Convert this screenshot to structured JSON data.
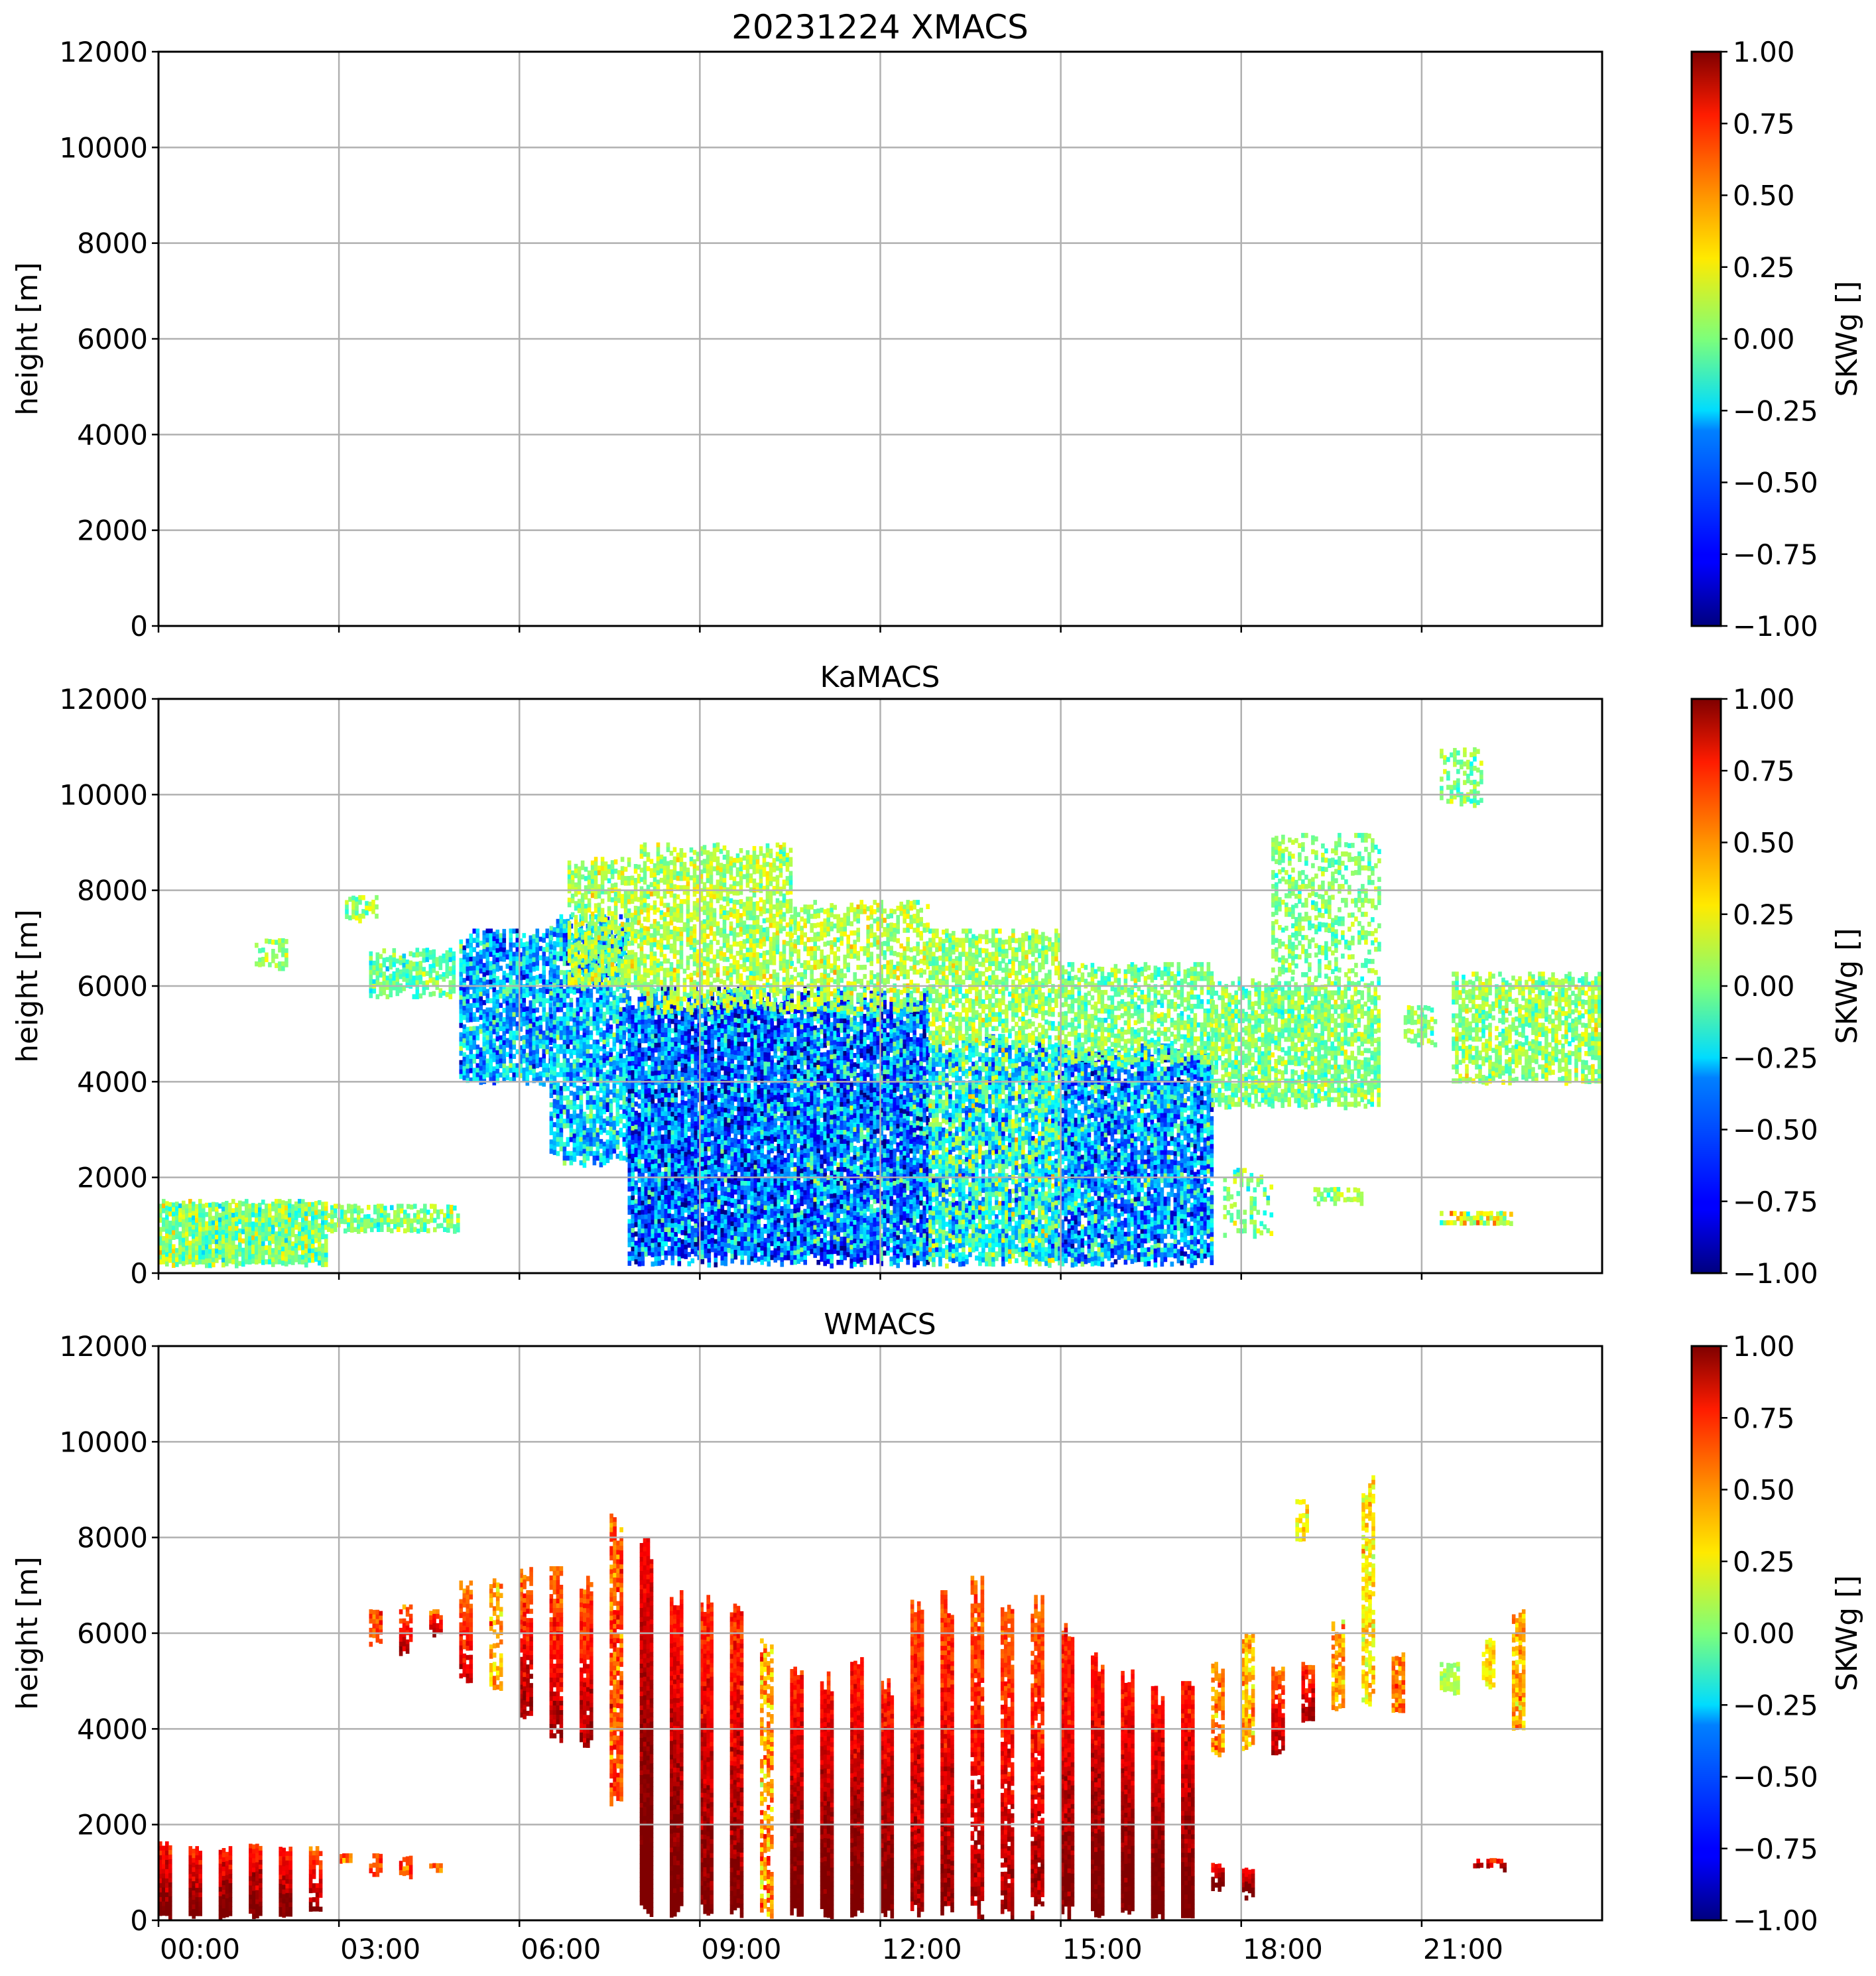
{
  "figure_title": "20231224 XMACS",
  "chart_data": [
    {
      "type": "heatmap",
      "title": "20231224 XMACS",
      "xlabel": "",
      "ylabel": "height [m]",
      "xlim_hours": [
        0,
        24
      ],
      "ylim": [
        0,
        12000
      ],
      "grid": true,
      "xticks_hours": [
        0,
        3,
        6,
        9,
        12,
        15,
        18,
        21
      ],
      "xtick_labels": [
        "00:00",
        "03:00",
        "06:00",
        "09:00",
        "12:00",
        "15:00",
        "18:00",
        "21:00"
      ],
      "show_xtick_labels": false,
      "yticks": [
        0,
        2000,
        4000,
        6000,
        8000,
        10000,
        12000
      ],
      "ytick_labels": [
        "0",
        "2000",
        "4000",
        "6000",
        "8000",
        "10000",
        "12000"
      ],
      "colorbar": {
        "label": "SKWg []",
        "range": [
          -1,
          1
        ],
        "colormap": "jet",
        "ticks": [
          1.0,
          0.75,
          0.5,
          0.25,
          0.0,
          -0.25,
          -0.5,
          -0.75,
          -1.0
        ],
        "tick_labels": [
          "1.00",
          "0.75",
          "0.50",
          "0.25",
          "0.00",
          "−0.25",
          "−0.50",
          "−0.75",
          "−1.00"
        ]
      },
      "features": []
    },
    {
      "type": "heatmap",
      "title": "KaMACS",
      "xlabel": "",
      "ylabel": "height [m]",
      "xlim_hours": [
        0,
        24
      ],
      "ylim": [
        0,
        12000
      ],
      "grid": true,
      "xticks_hours": [
        0,
        3,
        6,
        9,
        12,
        15,
        18,
        21
      ],
      "xtick_labels": [
        "00:00",
        "03:00",
        "06:00",
        "09:00",
        "12:00",
        "15:00",
        "18:00",
        "21:00"
      ],
      "show_xtick_labels": false,
      "yticks": [
        0,
        2000,
        4000,
        6000,
        8000,
        10000,
        12000
      ],
      "ytick_labels": [
        "0",
        "2000",
        "4000",
        "6000",
        "8000",
        "10000",
        "12000"
      ],
      "colorbar": {
        "label": "SKWg []",
        "range": [
          -1,
          1
        ],
        "colormap": "jet",
        "ticks": [
          1.0,
          0.75,
          0.5,
          0.25,
          0.0,
          -0.25,
          -0.5,
          -0.75,
          -1.0
        ],
        "tick_labels": [
          "1.00",
          "0.75",
          "0.50",
          "0.25",
          "0.00",
          "−0.25",
          "−0.50",
          "−0.75",
          "−1.00"
        ]
      },
      "features": [
        {
          "t0": 0.0,
          "t1": 2.8,
          "h0": 200,
          "h1": 1550,
          "mean": 0.0,
          "spread": 0.45,
          "fill": 0.95
        },
        {
          "t0": 2.8,
          "t1": 5.0,
          "h0": 900,
          "h1": 1450,
          "mean": 0.0,
          "spread": 0.35,
          "fill": 0.7
        },
        {
          "t0": 1.6,
          "t1": 2.1,
          "h0": 6400,
          "h1": 7000,
          "mean": 0.05,
          "spread": 0.3,
          "fill": 0.5
        },
        {
          "t0": 3.1,
          "t1": 3.6,
          "h0": 7400,
          "h1": 7900,
          "mean": 0.05,
          "spread": 0.3,
          "fill": 0.6
        },
        {
          "t0": 3.5,
          "t1": 4.9,
          "h0": 5800,
          "h1": 6800,
          "mean": -0.05,
          "spread": 0.35,
          "fill": 0.7
        },
        {
          "t0": 5.0,
          "t1": 6.5,
          "h0": 4000,
          "h1": 7200,
          "mean": -0.4,
          "spread": 0.6,
          "fill": 0.85
        },
        {
          "t0": 6.5,
          "t1": 7.8,
          "h0": 2300,
          "h1": 7500,
          "mean": -0.35,
          "spread": 0.6,
          "fill": 0.85
        },
        {
          "t0": 6.8,
          "t1": 8.0,
          "h0": 6000,
          "h1": 8700,
          "mean": 0.1,
          "spread": 0.35,
          "fill": 0.7
        },
        {
          "t0": 7.8,
          "t1": 10.5,
          "h0": 200,
          "h1": 6000,
          "mean": -0.55,
          "spread": 0.7,
          "fill": 0.95
        },
        {
          "t0": 8.0,
          "t1": 10.5,
          "h0": 5500,
          "h1": 9000,
          "mean": 0.1,
          "spread": 0.35,
          "fill": 0.7
        },
        {
          "t0": 10.5,
          "t1": 12.8,
          "h0": 200,
          "h1": 6000,
          "mean": -0.5,
          "spread": 0.75,
          "fill": 0.95
        },
        {
          "t0": 10.5,
          "t1": 12.8,
          "h0": 5500,
          "h1": 7800,
          "mean": 0.1,
          "spread": 0.35,
          "fill": 0.6
        },
        {
          "t0": 12.8,
          "t1": 15.0,
          "h0": 200,
          "h1": 5000,
          "mean": -0.2,
          "spread": 0.7,
          "fill": 0.9
        },
        {
          "t0": 12.8,
          "t1": 15.0,
          "h0": 4800,
          "h1": 7200,
          "mean": 0.05,
          "spread": 0.35,
          "fill": 0.7
        },
        {
          "t0": 15.0,
          "t1": 17.5,
          "h0": 200,
          "h1": 4800,
          "mean": -0.45,
          "spread": 0.7,
          "fill": 0.9
        },
        {
          "t0": 15.0,
          "t1": 17.5,
          "h0": 4400,
          "h1": 6500,
          "mean": 0.0,
          "spread": 0.35,
          "fill": 0.65
        },
        {
          "t0": 17.5,
          "t1": 20.3,
          "h0": 3500,
          "h1": 6200,
          "mean": 0.0,
          "spread": 0.35,
          "fill": 0.75
        },
        {
          "t0": 18.5,
          "t1": 20.3,
          "h0": 6200,
          "h1": 9200,
          "mean": 0.0,
          "spread": 0.3,
          "fill": 0.45
        },
        {
          "t0": 21.3,
          "t1": 22.0,
          "h0": 9800,
          "h1": 11000,
          "mean": 0.0,
          "spread": 0.3,
          "fill": 0.5
        },
        {
          "t0": 20.7,
          "t1": 21.2,
          "h0": 4800,
          "h1": 5600,
          "mean": 0.0,
          "spread": 0.3,
          "fill": 0.7
        },
        {
          "t0": 21.5,
          "t1": 24.0,
          "h0": 4000,
          "h1": 6300,
          "mean": 0.05,
          "spread": 0.35,
          "fill": 0.7
        },
        {
          "t0": 19.2,
          "t1": 20.0,
          "h0": 1500,
          "h1": 1800,
          "mean": 0.0,
          "spread": 0.35,
          "fill": 0.6
        },
        {
          "t0": 21.3,
          "t1": 22.5,
          "h0": 1050,
          "h1": 1300,
          "mean": 0.2,
          "spread": 0.5,
          "fill": 0.6
        },
        {
          "t0": 17.7,
          "t1": 18.5,
          "h0": 800,
          "h1": 2200,
          "mean": 0.0,
          "spread": 0.4,
          "fill": 0.35
        }
      ]
    },
    {
      "type": "heatmap",
      "title": "WMACS",
      "xlabel": "",
      "ylabel": "height [m]",
      "xlim_hours": [
        0,
        24
      ],
      "ylim": [
        0,
        12000
      ],
      "grid": true,
      "xticks_hours": [
        0,
        3,
        6,
        9,
        12,
        15,
        18,
        21
      ],
      "xtick_labels": [
        "00:00",
        "03:00",
        "06:00",
        "09:00",
        "12:00",
        "15:00",
        "18:00",
        "21:00"
      ],
      "show_xtick_labels": true,
      "yticks": [
        0,
        2000,
        4000,
        6000,
        8000,
        10000,
        12000
      ],
      "ytick_labels": [
        "0",
        "2000",
        "4000",
        "6000",
        "8000",
        "10000",
        "12000"
      ],
      "colorbar": {
        "label": "SKWg []",
        "range": [
          -1,
          1
        ],
        "colormap": "jet",
        "ticks": [
          1.0,
          0.75,
          0.5,
          0.25,
          0.0,
          -0.25,
          -0.5,
          -0.75,
          -1.0
        ],
        "tick_labels": [
          "1.00",
          "0.75",
          "0.50",
          "0.25",
          "0.00",
          "−0.25",
          "−0.50",
          "−0.75",
          "−1.00"
        ]
      },
      "features": [
        {
          "t0": 0.0,
          "t1": 0.22,
          "h0": 100,
          "h1": 1650,
          "mean": 0.85,
          "spread": 0.3,
          "fill": 1.0
        },
        {
          "t0": 0.5,
          "t1": 0.72,
          "h0": 100,
          "h1": 1550,
          "mean": 0.85,
          "spread": 0.3,
          "fill": 1.0
        },
        {
          "t0": 1.0,
          "t1": 1.22,
          "h0": 100,
          "h1": 1550,
          "mean": 0.85,
          "spread": 0.3,
          "fill": 1.0
        },
        {
          "t0": 1.5,
          "t1": 1.72,
          "h0": 100,
          "h1": 1600,
          "mean": 0.85,
          "spread": 0.3,
          "fill": 1.0
        },
        {
          "t0": 2.0,
          "t1": 2.22,
          "h0": 100,
          "h1": 1550,
          "mean": 0.85,
          "spread": 0.3,
          "fill": 1.0
        },
        {
          "t0": 2.5,
          "t1": 2.72,
          "h0": 200,
          "h1": 1550,
          "mean": 0.75,
          "spread": 0.3,
          "fill": 0.8
        },
        {
          "t0": 3.0,
          "t1": 3.2,
          "h0": 1200,
          "h1": 1400,
          "mean": 0.5,
          "spread": 0.3,
          "fill": 0.8
        },
        {
          "t0": 3.5,
          "t1": 3.7,
          "h0": 1000,
          "h1": 1400,
          "mean": 0.6,
          "spread": 0.3,
          "fill": 0.8
        },
        {
          "t0": 4.0,
          "t1": 4.2,
          "h0": 950,
          "h1": 1350,
          "mean": 0.6,
          "spread": 0.3,
          "fill": 0.8
        },
        {
          "t0": 4.5,
          "t1": 4.7,
          "h0": 1000,
          "h1": 1200,
          "mean": 0.45,
          "spread": 0.3,
          "fill": 0.7
        },
        {
          "t0": 3.5,
          "t1": 3.7,
          "h0": 5800,
          "h1": 6500,
          "mean": 0.6,
          "spread": 0.3,
          "fill": 0.8
        },
        {
          "t0": 4.0,
          "t1": 4.2,
          "h0": 5600,
          "h1": 6600,
          "mean": 0.7,
          "spread": 0.3,
          "fill": 0.85
        },
        {
          "t0": 4.5,
          "t1": 4.7,
          "h0": 6000,
          "h1": 6500,
          "mean": 0.7,
          "spread": 0.3,
          "fill": 0.8
        },
        {
          "t0": 5.0,
          "t1": 5.2,
          "h0": 5000,
          "h1": 7100,
          "mean": 0.65,
          "spread": 0.3,
          "fill": 0.85
        },
        {
          "t0": 5.5,
          "t1": 5.72,
          "h0": 4900,
          "h1": 7200,
          "mean": 0.45,
          "spread": 0.35,
          "fill": 0.7
        },
        {
          "t0": 6.0,
          "t1": 6.22,
          "h0": 4200,
          "h1": 7400,
          "mean": 0.7,
          "spread": 0.3,
          "fill": 0.9
        },
        {
          "t0": 6.5,
          "t1": 6.72,
          "h0": 3800,
          "h1": 7400,
          "mean": 0.7,
          "spread": 0.3,
          "fill": 0.9
        },
        {
          "t0": 7.0,
          "t1": 7.22,
          "h0": 3700,
          "h1": 7200,
          "mean": 0.7,
          "spread": 0.3,
          "fill": 0.9
        },
        {
          "t0": 7.5,
          "t1": 7.72,
          "h0": 2400,
          "h1": 8500,
          "mean": 0.6,
          "spread": 0.35,
          "fill": 0.9
        },
        {
          "t0": 8.0,
          "t1": 8.2,
          "h0": 100,
          "h1": 8000,
          "mean": 0.9,
          "spread": 0.2,
          "fill": 1.0
        },
        {
          "t0": 8.5,
          "t1": 8.7,
          "h0": 100,
          "h1": 6900,
          "mean": 0.85,
          "spread": 0.25,
          "fill": 1.0
        },
        {
          "t0": 9.0,
          "t1": 9.2,
          "h0": 100,
          "h1": 6800,
          "mean": 0.8,
          "spread": 0.3,
          "fill": 1.0
        },
        {
          "t0": 9.5,
          "t1": 9.7,
          "h0": 100,
          "h1": 6700,
          "mean": 0.8,
          "spread": 0.3,
          "fill": 1.0
        },
        {
          "t0": 10.0,
          "t1": 10.2,
          "h0": 100,
          "h1": 6000,
          "mean": 0.45,
          "spread": 0.4,
          "fill": 0.75
        },
        {
          "t0": 10.5,
          "t1": 10.7,
          "h0": 100,
          "h1": 5300,
          "mean": 0.85,
          "spread": 0.25,
          "fill": 1.0
        },
        {
          "t0": 11.0,
          "t1": 11.2,
          "h0": 100,
          "h1": 5200,
          "mean": 0.85,
          "spread": 0.25,
          "fill": 1.0
        },
        {
          "t0": 11.5,
          "t1": 11.7,
          "h0": 100,
          "h1": 5500,
          "mean": 0.85,
          "spread": 0.25,
          "fill": 1.0
        },
        {
          "t0": 12.0,
          "t1": 12.2,
          "h0": 100,
          "h1": 5100,
          "mean": 0.85,
          "spread": 0.25,
          "fill": 1.0
        },
        {
          "t0": 12.5,
          "t1": 12.7,
          "h0": 100,
          "h1": 6700,
          "mean": 0.75,
          "spread": 0.3,
          "fill": 1.0
        },
        {
          "t0": 13.0,
          "t1": 13.2,
          "h0": 100,
          "h1": 6900,
          "mean": 0.75,
          "spread": 0.3,
          "fill": 1.0
        },
        {
          "t0": 13.5,
          "t1": 13.7,
          "h0": 100,
          "h1": 7200,
          "mean": 0.7,
          "spread": 0.3,
          "fill": 0.9
        },
        {
          "t0": 14.0,
          "t1": 14.2,
          "h0": 100,
          "h1": 7000,
          "mean": 0.7,
          "spread": 0.3,
          "fill": 0.9
        },
        {
          "t0": 14.5,
          "t1": 14.7,
          "h0": 100,
          "h1": 6800,
          "mean": 0.7,
          "spread": 0.3,
          "fill": 0.9
        },
        {
          "t0": 15.0,
          "t1": 15.2,
          "h0": 100,
          "h1": 6300,
          "mean": 0.8,
          "spread": 0.3,
          "fill": 1.0
        },
        {
          "t0": 15.5,
          "t1": 15.7,
          "h0": 100,
          "h1": 5600,
          "mean": 0.85,
          "spread": 0.25,
          "fill": 1.0
        },
        {
          "t0": 16.0,
          "t1": 16.2,
          "h0": 100,
          "h1": 5300,
          "mean": 0.85,
          "spread": 0.25,
          "fill": 1.0
        },
        {
          "t0": 16.5,
          "t1": 16.7,
          "h0": 100,
          "h1": 4900,
          "mean": 0.85,
          "spread": 0.25,
          "fill": 1.0
        },
        {
          "t0": 17.0,
          "t1": 17.2,
          "h0": 100,
          "h1": 5000,
          "mean": 0.85,
          "spread": 0.25,
          "fill": 1.0
        },
        {
          "t0": 17.5,
          "t1": 17.7,
          "h0": 3500,
          "h1": 5400,
          "mean": 0.5,
          "spread": 0.35,
          "fill": 0.8
        },
        {
          "t0": 17.5,
          "t1": 17.7,
          "h0": 700,
          "h1": 1200,
          "mean": 0.9,
          "spread": 0.2,
          "fill": 0.9
        },
        {
          "t0": 18.0,
          "t1": 18.2,
          "h0": 3600,
          "h1": 6000,
          "mean": 0.4,
          "spread": 0.35,
          "fill": 0.8
        },
        {
          "t0": 18.5,
          "t1": 18.7,
          "h0": 3500,
          "h1": 5300,
          "mean": 0.7,
          "spread": 0.3,
          "fill": 0.9
        },
        {
          "t0": 19.0,
          "t1": 19.2,
          "h0": 4200,
          "h1": 5400,
          "mean": 0.75,
          "spread": 0.3,
          "fill": 0.85
        },
        {
          "t0": 19.5,
          "t1": 19.7,
          "h0": 4400,
          "h1": 6300,
          "mean": 0.4,
          "spread": 0.35,
          "fill": 0.8
        },
        {
          "t0": 20.0,
          "t1": 20.2,
          "h0": 4500,
          "h1": 9300,
          "mean": 0.3,
          "spread": 0.3,
          "fill": 0.7
        },
        {
          "t0": 20.5,
          "t1": 20.7,
          "h0": 4400,
          "h1": 5600,
          "mean": 0.55,
          "spread": 0.3,
          "fill": 0.85
        },
        {
          "t0": 18.9,
          "t1": 19.1,
          "h0": 8000,
          "h1": 8800,
          "mean": 0.25,
          "spread": 0.25,
          "fill": 0.6
        },
        {
          "t0": 21.3,
          "t1": 21.6,
          "h0": 4800,
          "h1": 5400,
          "mean": 0.1,
          "spread": 0.2,
          "fill": 0.8
        },
        {
          "t0": 22.0,
          "t1": 22.2,
          "h0": 4900,
          "h1": 5900,
          "mean": 0.25,
          "spread": 0.25,
          "fill": 0.85
        },
        {
          "t0": 22.5,
          "t1": 22.7,
          "h0": 4000,
          "h1": 6500,
          "mean": 0.4,
          "spread": 0.3,
          "fill": 0.9
        },
        {
          "t0": 18.0,
          "t1": 18.2,
          "h0": 500,
          "h1": 1100,
          "mean": 0.9,
          "spread": 0.2,
          "fill": 0.9
        },
        {
          "t0": 21.8,
          "t1": 22.4,
          "h0": 1100,
          "h1": 1300,
          "mean": 0.85,
          "spread": 0.25,
          "fill": 0.6
        }
      ]
    }
  ]
}
